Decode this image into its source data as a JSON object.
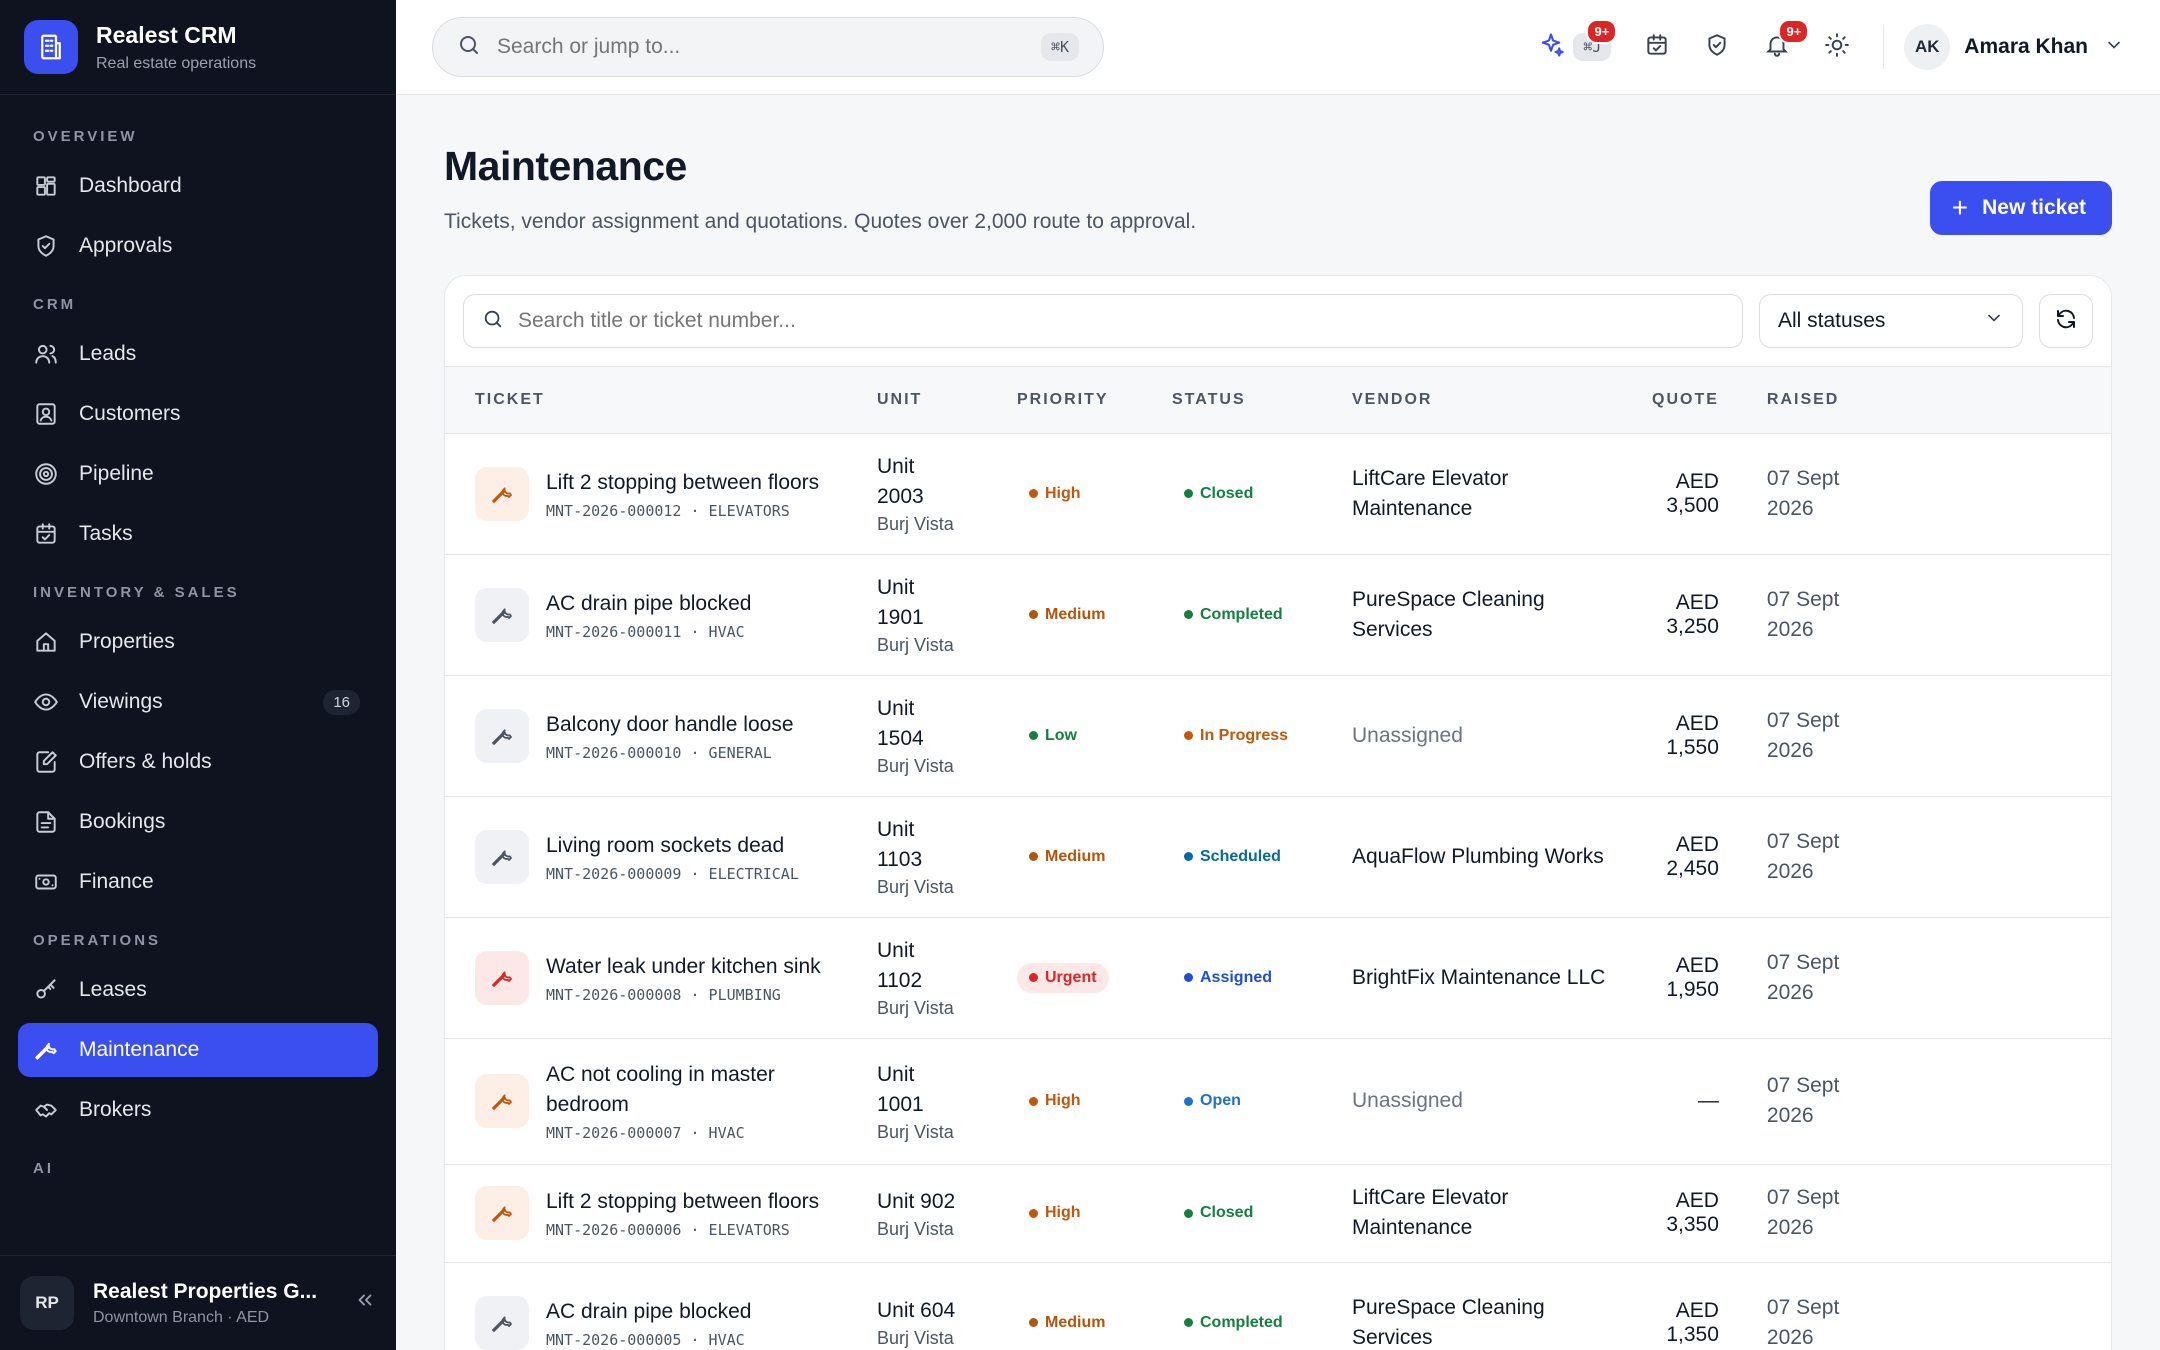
{
  "brand": {
    "title": "Realest CRM",
    "subtitle": "Real estate operations"
  },
  "sidebar": {
    "sections": [
      {
        "label": "OVERVIEW",
        "items": [
          {
            "label": "Dashboard",
            "icon": "dashboard-icon"
          },
          {
            "label": "Approvals",
            "icon": "shield-check-icon"
          }
        ]
      },
      {
        "label": "CRM",
        "items": [
          {
            "label": "Leads",
            "icon": "users-icon"
          },
          {
            "label": "Customers",
            "icon": "contact-icon"
          },
          {
            "label": "Pipeline",
            "icon": "target-icon"
          },
          {
            "label": "Tasks",
            "icon": "calendar-check-icon"
          }
        ]
      },
      {
        "label": "INVENTORY & SALES",
        "items": [
          {
            "label": "Properties",
            "icon": "home-icon"
          },
          {
            "label": "Viewings",
            "icon": "eye-icon",
            "badge": "16"
          },
          {
            "label": "Offers & holds",
            "icon": "edit-doc-icon"
          },
          {
            "label": "Bookings",
            "icon": "document-icon"
          },
          {
            "label": "Finance",
            "icon": "banknote-icon"
          }
        ]
      },
      {
        "label": "OPERATIONS",
        "items": [
          {
            "label": "Leases",
            "icon": "key-icon"
          },
          {
            "label": "Maintenance",
            "icon": "wrench-icon",
            "active": true
          },
          {
            "label": "Brokers",
            "icon": "handshake-icon"
          }
        ]
      },
      {
        "label": "AI",
        "items": []
      }
    ],
    "org": {
      "initials": "RP",
      "name": "Realest Properties G...",
      "sub": "Downtown Branch · AED"
    }
  },
  "topbar": {
    "search_placeholder": "Search or jump to...",
    "search_shortcut": "⌘K",
    "ai_shortcut": "⌘J",
    "ai_badge": "9+",
    "notif_badge": "9+",
    "user": {
      "initials": "AK",
      "name": "Amara Khan"
    }
  },
  "page": {
    "title": "Maintenance",
    "subtitle": "Tickets, vendor assignment and quotations. Quotes over 2,000 route to approval.",
    "new_button": "New ticket"
  },
  "filters": {
    "search_placeholder": "Search title or ticket number...",
    "status_value": "All statuses"
  },
  "table": {
    "headers": [
      "TICKET",
      "UNIT",
      "PRIORITY",
      "STATUS",
      "VENDOR",
      "QUOTE",
      "RAISED"
    ],
    "rows": [
      {
        "title": "Lift 2 stopping between floors",
        "code": "MNT-2026-000012 · ELEVATORS",
        "unit": "Unit 2003",
        "building": "Burj Vista",
        "priority": "High",
        "status": "Closed",
        "vendor": "LiftCare Elevator Maintenance",
        "quote": "AED 3,500",
        "raised": "07 Sept 2026",
        "icon_tone": "warm"
      },
      {
        "title": "AC drain pipe blocked",
        "code": "MNT-2026-000011 · HVAC",
        "unit": "Unit 1901",
        "building": "Burj Vista",
        "priority": "Medium",
        "status": "Completed",
        "vendor": "PureSpace Cleaning Services",
        "quote": "AED 3,250",
        "raised": "07 Sept 2026",
        "icon_tone": "grey"
      },
      {
        "title": "Balcony door handle loose",
        "code": "MNT-2026-000010 · GENERAL",
        "unit": "Unit 1504",
        "building": "Burj Vista",
        "priority": "Low",
        "status": "In Progress",
        "vendor": "Unassigned",
        "quote": "AED 1,550",
        "raised": "07 Sept 2026",
        "icon_tone": "grey"
      },
      {
        "title": "Living room sockets dead",
        "code": "MNT-2026-000009 · ELECTRICAL",
        "unit": "Unit 1103",
        "building": "Burj Vista",
        "priority": "Medium",
        "status": "Scheduled",
        "vendor": "AquaFlow Plumbing Works",
        "quote": "AED 2,450",
        "raised": "07 Sept 2026",
        "icon_tone": "grey"
      },
      {
        "title": "Water leak under kitchen sink",
        "code": "MNT-2026-000008 · PLUMBING",
        "unit": "Unit 1102",
        "building": "Burj Vista",
        "priority": "Urgent",
        "status": "Assigned",
        "vendor": "BrightFix Maintenance LLC",
        "quote": "AED 1,950",
        "raised": "07 Sept 2026",
        "icon_tone": "red"
      },
      {
        "title": "AC not cooling in master bedroom",
        "code": "MNT-2026-000007 · HVAC",
        "unit": "Unit 1001",
        "building": "Burj Vista",
        "priority": "High",
        "status": "Open",
        "vendor": "Unassigned",
        "quote": "—",
        "raised": "07 Sept 2026",
        "icon_tone": "warm"
      },
      {
        "title": "Lift 2 stopping between floors",
        "code": "MNT-2026-000006 · ELEVATORS",
        "unit": "Unit 902",
        "building": "Burj Vista",
        "priority": "High",
        "status": "Closed",
        "vendor": "LiftCare Elevator Maintenance",
        "quote": "AED 3,350",
        "raised": "07 Sept 2026",
        "icon_tone": "warm"
      },
      {
        "title": "AC drain pipe blocked",
        "code": "MNT-2026-000005 · HVAC",
        "unit": "Unit 604",
        "building": "Burj Vista",
        "priority": "Medium",
        "status": "Completed",
        "vendor": "PureSpace Cleaning Services",
        "quote": "AED 1,350",
        "raised": "07 Sept 2026",
        "icon_tone": "grey"
      }
    ]
  },
  "colors": {
    "accent": "#3b4ef0",
    "sidebar_bg": "#0f1320",
    "priority": {
      "High": "#c2570c",
      "Medium": "#b45309",
      "Low": "#15803d",
      "Urgent": "#dc2626"
    },
    "status": {
      "Closed": "#15803d",
      "Completed": "#15803d",
      "In Progress": "#c2570c",
      "Scheduled": "#0369a1",
      "Assigned": "#1d4ed8",
      "Open": "#1d6fd0"
    }
  }
}
